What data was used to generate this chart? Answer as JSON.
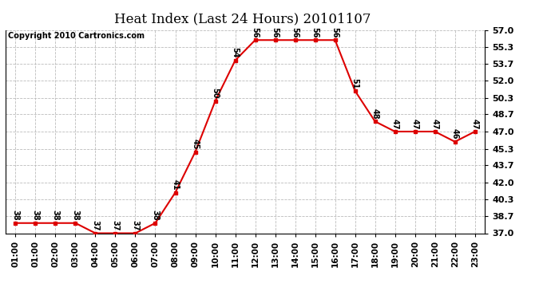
{
  "title": "Heat Index (Last 24 Hours) 20101107",
  "copyright": "Copyright 2010 Cartronics.com",
  "x_labels": [
    "01:00",
    "01:00",
    "02:00",
    "03:00",
    "04:00",
    "05:00",
    "06:00",
    "07:00",
    "08:00",
    "09:00",
    "10:00",
    "11:00",
    "12:00",
    "13:00",
    "14:00",
    "15:00",
    "16:00",
    "17:00",
    "18:00",
    "19:00",
    "20:00",
    "21:00",
    "22:00",
    "23:00"
  ],
  "y_values": [
    38,
    38,
    38,
    38,
    37,
    37,
    37,
    38,
    41,
    45,
    50,
    54,
    56,
    56,
    56,
    56,
    56,
    51,
    48,
    47,
    47,
    47,
    46,
    47
  ],
  "y_labels": [
    "57.0",
    "55.3",
    "53.7",
    "52.0",
    "50.3",
    "48.7",
    "47.0",
    "45.3",
    "43.7",
    "42.0",
    "40.3",
    "38.7",
    "37.0"
  ],
  "y_ticks": [
    57.0,
    55.3,
    53.7,
    52.0,
    50.3,
    48.7,
    47.0,
    45.3,
    43.7,
    42.0,
    40.3,
    38.7,
    37.0
  ],
  "ylim": [
    37.0,
    57.0
  ],
  "line_color": "#dd0000",
  "marker_color": "#dd0000",
  "bg_color": "#ffffff",
  "grid_color": "#bbbbbb",
  "title_fontsize": 12,
  "copyright_fontsize": 7,
  "label_fontsize": 7,
  "tick_fontsize": 7.5,
  "ytick_fontsize": 8
}
